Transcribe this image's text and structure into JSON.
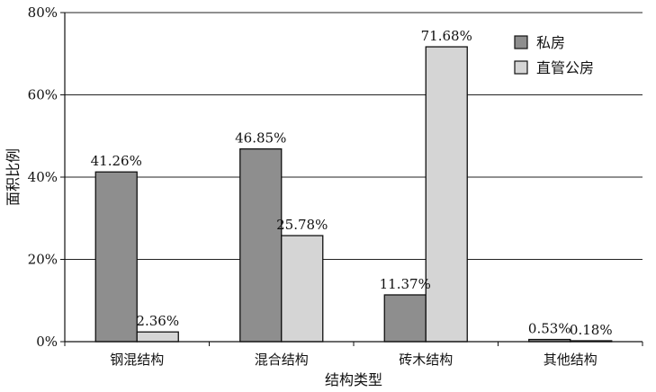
{
  "chart_data": {
    "type": "bar",
    "title": "",
    "xlabel": "结构类型",
    "ylabel": "面积比例",
    "ylim": [
      0,
      80
    ],
    "y_ticks": [
      0,
      20,
      40,
      60,
      80
    ],
    "y_tick_labels": [
      "0%",
      "20%",
      "40%",
      "60%",
      "80%"
    ],
    "grid": true,
    "legend_position": "top-right",
    "categories": [
      "钢混结构",
      "混合结构",
      "砖木结构",
      "其他结构"
    ],
    "series": [
      {
        "name": "私房",
        "color": "#8e8e8e",
        "values": [
          41.26,
          46.85,
          11.37,
          0.53
        ],
        "labels": [
          "41.26%",
          "46.85%",
          "11.37%",
          "0.53%"
        ]
      },
      {
        "name": "直管公房",
        "color": "#d5d5d5",
        "values": [
          2.36,
          25.78,
          71.68,
          0.18
        ],
        "labels": [
          "2.36%",
          "25.78%",
          "71.68%",
          "0.18%"
        ]
      }
    ]
  }
}
